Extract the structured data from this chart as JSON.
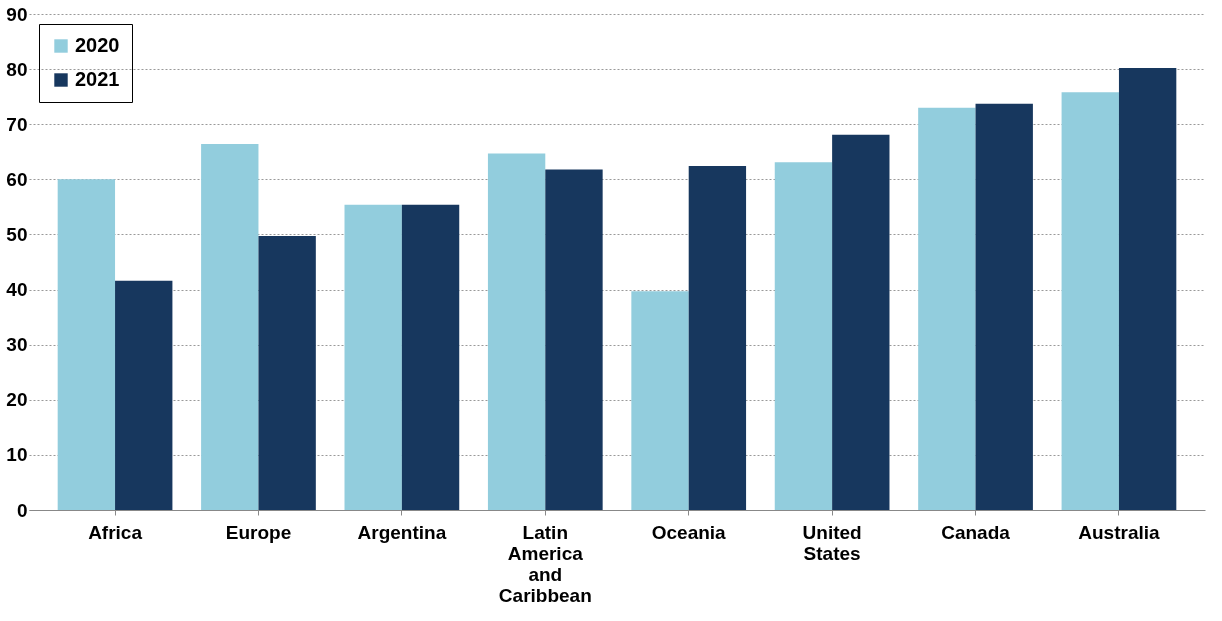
{
  "chart_data": {
    "type": "bar",
    "categories": [
      "Africa",
      "Europe",
      "Argentina",
      "Latin America and Caribbean",
      "Oceania",
      "United States",
      "Canada",
      "Australia"
    ],
    "series": [
      {
        "name": "2020",
        "color": "#92cddd",
        "values": [
          60,
          66.4,
          55.4,
          64.7,
          39.7,
          63.1,
          73,
          75.8
        ]
      },
      {
        "name": "2021",
        "color": "#17375e",
        "values": [
          41.6,
          49.7,
          55.4,
          61.8,
          62.4,
          68.1,
          73.7,
          80.2
        ]
      }
    ],
    "ylim": [
      0,
      90
    ],
    "yticks": [
      0,
      10,
      20,
      30,
      40,
      50,
      60,
      70,
      80,
      90
    ],
    "grid": "y",
    "legend": "top left"
  }
}
